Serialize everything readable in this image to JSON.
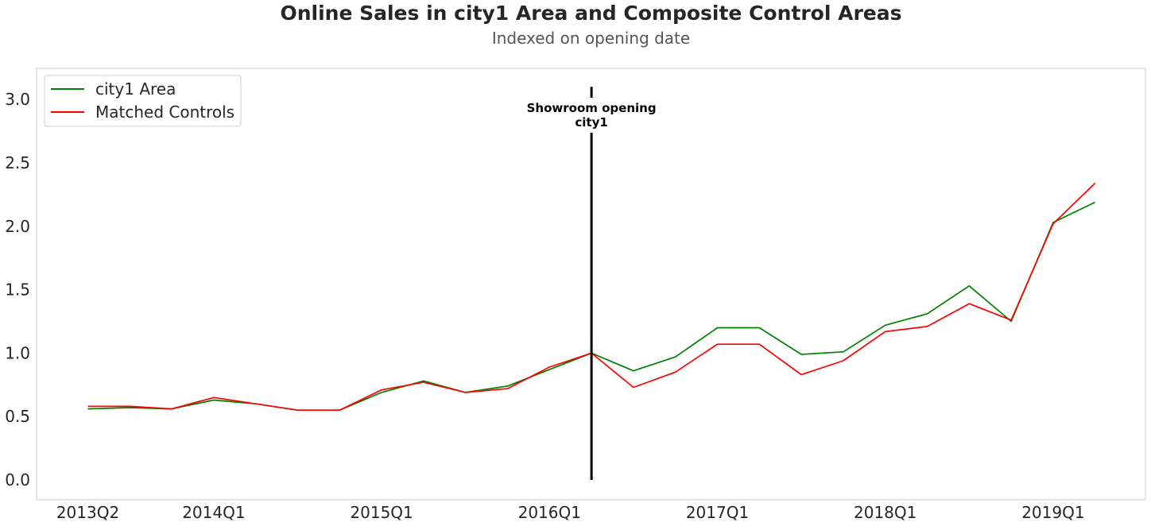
{
  "chart_data": {
    "type": "line",
    "title": "Online Sales in city1 Area and Composite Control Areas",
    "subtitle": "Indexed on opening date",
    "xlabel": "",
    "ylabel": "",
    "x_quarters": [
      "2013Q2",
      "2013Q3",
      "2013Q4",
      "2014Q1",
      "2014Q2",
      "2014Q3",
      "2014Q4",
      "2015Q1",
      "2015Q2",
      "2015Q3",
      "2015Q4",
      "2016Q1",
      "2016Q2",
      "2016Q3",
      "2016Q4",
      "2017Q1",
      "2017Q2",
      "2017Q3",
      "2017Q4",
      "2018Q1",
      "2018Q2",
      "2018Q3",
      "2018Q4",
      "2019Q1",
      "2019Q2"
    ],
    "xtick_labels": [
      "2013Q2",
      "2014Q1",
      "2015Q1",
      "2016Q1",
      "2017Q1",
      "2018Q1",
      "2019Q1"
    ],
    "yticks": [
      0.0,
      0.5,
      1.0,
      1.5,
      2.0,
      2.5,
      3.0
    ],
    "ytick_labels": [
      "0.0",
      "0.5",
      "1.0",
      "1.5",
      "2.0",
      "2.5",
      "3.0"
    ],
    "ylim": [
      -0.15,
      3.25
    ],
    "grid": false,
    "legend_position": "top-left",
    "series": [
      {
        "name": "city1 Area",
        "color": "#008000",
        "values": [
          0.56,
          0.57,
          0.56,
          0.63,
          0.6,
          0.55,
          0.55,
          0.69,
          0.78,
          0.69,
          0.74,
          0.87,
          1.0,
          0.86,
          0.97,
          1.2,
          1.2,
          0.99,
          1.01,
          1.22,
          1.31,
          1.53,
          1.25,
          2.03,
          2.19
        ]
      },
      {
        "name": "Matched Controls",
        "color": "#ff0000",
        "values": [
          0.58,
          0.58,
          0.56,
          0.65,
          0.6,
          0.55,
          0.55,
          0.71,
          0.77,
          0.69,
          0.72,
          0.89,
          1.0,
          0.73,
          0.85,
          1.07,
          1.07,
          0.83,
          0.94,
          1.17,
          1.21,
          1.39,
          1.26,
          2.02,
          2.34
        ]
      }
    ],
    "vline": {
      "x": "2016Q2",
      "color": "#000000",
      "y_range": [
        0.0,
        3.1
      ]
    },
    "annotation": {
      "line1": "Showroom opening",
      "line2": "city1"
    }
  }
}
